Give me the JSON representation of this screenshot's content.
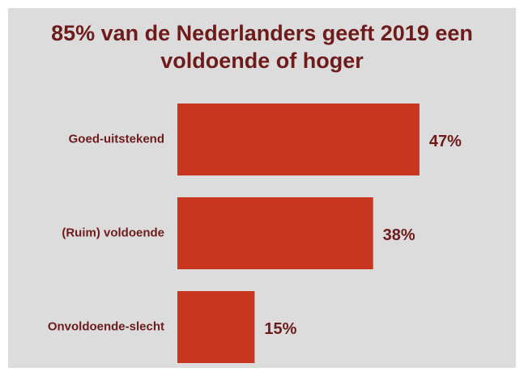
{
  "chart_data": {
    "type": "bar",
    "orientation": "horizontal",
    "title": "85% van de Nederlanders geeft 2019 een voldoende of hoger",
    "categories": [
      "Goed-uitstekend",
      "(Ruim) voldoende",
      "Onvoldoende-slecht"
    ],
    "values": [
      47,
      38,
      15
    ],
    "value_labels": [
      "47%",
      "38%",
      "15%"
    ],
    "color": "#c9361f"
  }
}
